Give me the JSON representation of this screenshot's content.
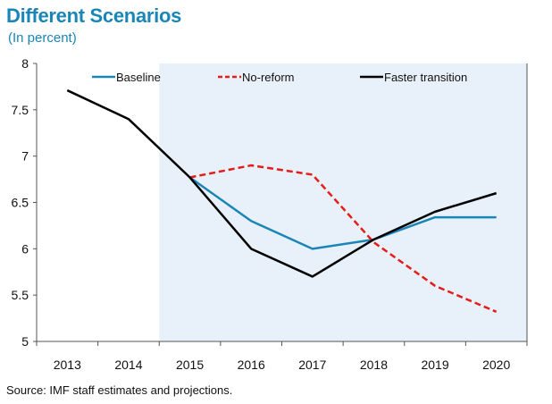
{
  "chart_data": {
    "type": "line",
    "title": "Different Scenarios",
    "subtitle": "(In percent)",
    "source": "Source: IMF staff estimates and projections.",
    "categories": [
      "2013",
      "2014",
      "2015",
      "2016",
      "2017",
      "2018",
      "2019",
      "2020"
    ],
    "ylim": [
      5,
      8
    ],
    "yticks": [
      5,
      5.5,
      6,
      6.5,
      7,
      7.5,
      8
    ],
    "ytick_labels": [
      "5",
      "5.5",
      "6",
      "6.5",
      "7",
      "7.5",
      "8"
    ],
    "shaded_region": {
      "from": "2014.5",
      "to": "2020",
      "color": "#e8f1fa"
    },
    "series": [
      {
        "name": "Baseline",
        "color": "#1a86b8",
        "dash": "solid",
        "values": [
          null,
          null,
          6.77,
          6.3,
          6.0,
          6.1,
          6.34,
          6.34
        ]
      },
      {
        "name": "No-reform",
        "color": "#e31d1a",
        "dash": "dashed",
        "values": [
          null,
          null,
          6.77,
          6.9,
          6.8,
          6.07,
          5.6,
          5.32
        ]
      },
      {
        "name": "Faster transition",
        "color": "#000000",
        "dash": "solid",
        "values": [
          7.71,
          7.4,
          6.77,
          6.0,
          5.7,
          6.1,
          6.4,
          6.6
        ]
      }
    ],
    "legend_position": "top"
  }
}
